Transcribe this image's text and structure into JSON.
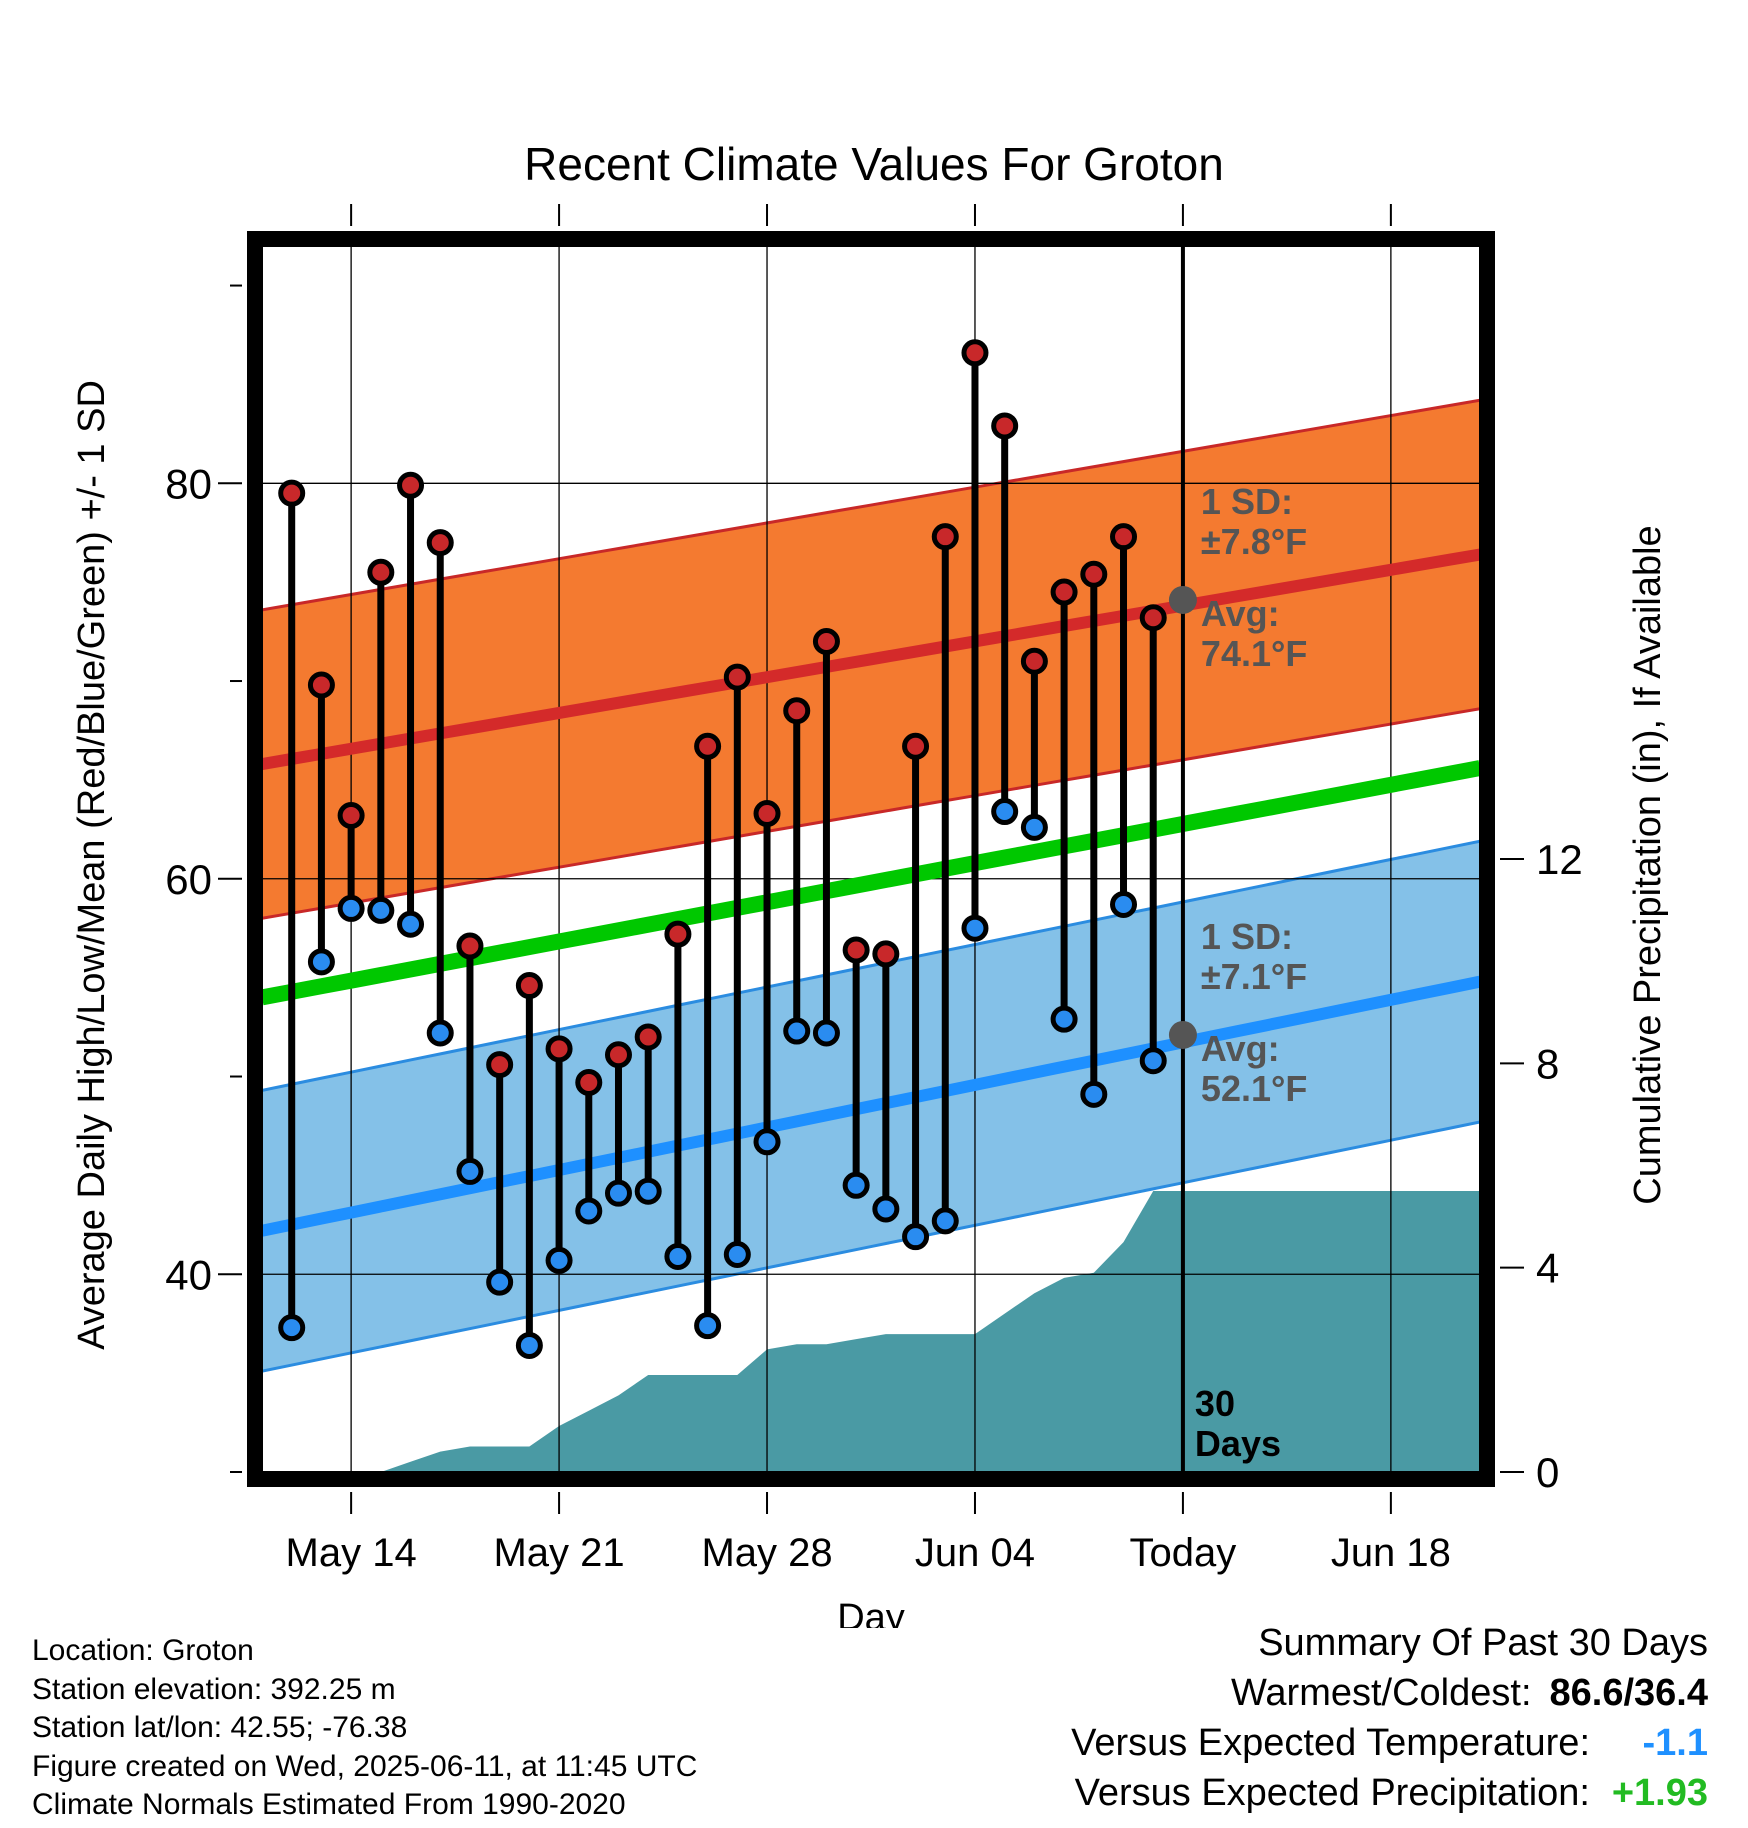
{
  "chart_data": {
    "type": "line",
    "title": "Recent Climate Values For Groton",
    "xlabel": "Day",
    "ylabel": "Average Daily High/Low/Mean (Red/Blue/Green) +/- 1 SD",
    "y2label": "Cumulative Precipitation (in), If Available",
    "x_range": [
      "2025-05-11",
      "2025-06-21"
    ],
    "ylim": [
      30,
      92
    ],
    "y2lim": [
      0,
      24
    ],
    "yticks": [
      40,
      60,
      80
    ],
    "y2ticks": [
      0,
      4,
      8,
      12
    ],
    "xticks": [
      {
        "date": "2025-05-14",
        "label": "May 14"
      },
      {
        "date": "2025-05-21",
        "label": "May 21"
      },
      {
        "date": "2025-05-28",
        "label": "May 28"
      },
      {
        "date": "2025-06-04",
        "label": "Jun 04"
      },
      {
        "date": "2025-06-11",
        "label": "Today"
      },
      {
        "date": "2025-06-18",
        "label": "Jun 18"
      }
    ],
    "grid": true,
    "dates": [
      "2025-05-12",
      "2025-05-13",
      "2025-05-14",
      "2025-05-15",
      "2025-05-16",
      "2025-05-17",
      "2025-05-18",
      "2025-05-19",
      "2025-05-20",
      "2025-05-21",
      "2025-05-22",
      "2025-05-23",
      "2025-05-24",
      "2025-05-25",
      "2025-05-26",
      "2025-05-27",
      "2025-05-28",
      "2025-05-29",
      "2025-05-30",
      "2025-05-31",
      "2025-06-01",
      "2025-06-02",
      "2025-06-03",
      "2025-06-04",
      "2025-06-05",
      "2025-06-06",
      "2025-06-07",
      "2025-06-08",
      "2025-06-09",
      "2025-06-10"
    ],
    "daily_high": [
      79.5,
      69.8,
      63.2,
      75.5,
      79.9,
      77.0,
      56.6,
      50.6,
      54.6,
      51.4,
      49.7,
      51.1,
      52.0,
      57.2,
      66.7,
      70.2,
      63.3,
      68.5,
      72.0,
      56.4,
      56.2,
      66.7,
      77.3,
      86.6,
      82.9,
      71.0,
      74.5,
      75.4,
      77.3,
      73.2
    ],
    "daily_low": [
      37.3,
      55.8,
      58.5,
      58.4,
      57.7,
      52.2,
      45.2,
      39.6,
      36.4,
      40.7,
      43.2,
      44.1,
      44.2,
      40.9,
      37.4,
      41.0,
      46.7,
      52.3,
      52.2,
      44.5,
      43.3,
      41.9,
      42.7,
      57.5,
      63.4,
      62.6,
      52.9,
      49.1,
      58.7,
      50.8
    ],
    "normal_high": {
      "start": 65.8,
      "end": 76.4
    },
    "normal_high_sd": 7.8,
    "normal_low": {
      "start": 42.2,
      "end": 54.8
    },
    "normal_low_sd": 7.1,
    "normal_mean": {
      "start": 54.0,
      "end": 65.6
    },
    "cumulative_precip": [
      0,
      0,
      0,
      0,
      0.2,
      0.4,
      0.5,
      0.5,
      0.5,
      0.9,
      1.2,
      1.5,
      1.9,
      1.9,
      1.9,
      1.9,
      2.4,
      2.5,
      2.5,
      2.6,
      2.7,
      2.7,
      2.7,
      2.7,
      3.1,
      3.5,
      3.8,
      3.9,
      4.5,
      5.5
    ],
    "cumulative_precip_extended": 5.5,
    "annotations": {
      "high_sd_label": "1 SD:",
      "high_sd_value": "±7.8°F",
      "high_avg_label": "Avg:",
      "high_avg_value": "74.1°F",
      "high_avg": 74.1,
      "low_sd_label": "1 SD:",
      "low_sd_value": "±7.1°F",
      "low_avg_label": "Avg:",
      "low_avg_value": "52.1°F",
      "low_avg": 52.1,
      "days_line1": "30",
      "days_line2": "Days"
    },
    "colors": {
      "high_band": "#f47a30",
      "high_line": "#d42a2a",
      "high_edge": "#c82828",
      "low_band": "#84c1e8",
      "low_line": "#1e90ff",
      "low_edge": "#2b8ce0",
      "mean_line": "#00c800",
      "precip": "#4a9aa4",
      "high_marker": "#c8282a",
      "low_marker": "#2a8cf0",
      "annotation": "#555555"
    }
  },
  "info": {
    "location": "Location: Groton",
    "elevation": "Station elevation: 392.25 m",
    "latlon": "Station lat/lon: 42.55; -76.38",
    "created": "Figure created on Wed, 2025-06-11, at 11:45 UTC",
    "normals": "Climate Normals Estimated From 1990-2020"
  },
  "summary": {
    "title": "Summary Of Past 30 Days",
    "warm_cold_label": "Warmest/Coldest:",
    "warm_cold_value": "86.6/36.4",
    "temp_label": "Versus Expected Temperature:",
    "temp_value": "-1.1",
    "temp_color": "#1e90ff",
    "precip_label": "Versus Expected Precipitation:",
    "precip_value": "+1.93",
    "precip_color": "#22bb22"
  }
}
